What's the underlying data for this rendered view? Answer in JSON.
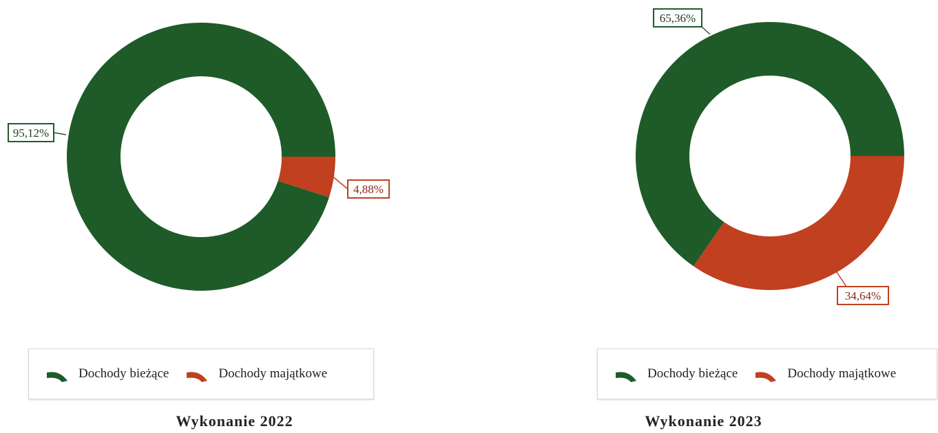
{
  "colors": {
    "biezace": "#1e5b28",
    "majatkowe": "#c0401f"
  },
  "chart_data": [
    {
      "type": "pie",
      "title": "Wykonanie 2022",
      "series": [
        {
          "name": "Dochody bieżące",
          "value": 95.12,
          "label": "95,12%"
        },
        {
          "name": "Dochody majątkowe",
          "value": 4.88,
          "label": "4,88%"
        }
      ],
      "legend": [
        "Dochody bieżące",
        "Dochody majątkowe"
      ],
      "legend_position": "bottom"
    },
    {
      "type": "pie",
      "title": "Wykonanie 2023",
      "series": [
        {
          "name": "Dochody bieżące",
          "value": 65.36,
          "label": "65,36%"
        },
        {
          "name": "Dochody majątkowe",
          "value": 34.64,
          "label": "34,64%"
        }
      ],
      "legend": [
        "Dochody bieżące",
        "Dochody majątkowe"
      ],
      "legend_position": "bottom"
    }
  ]
}
